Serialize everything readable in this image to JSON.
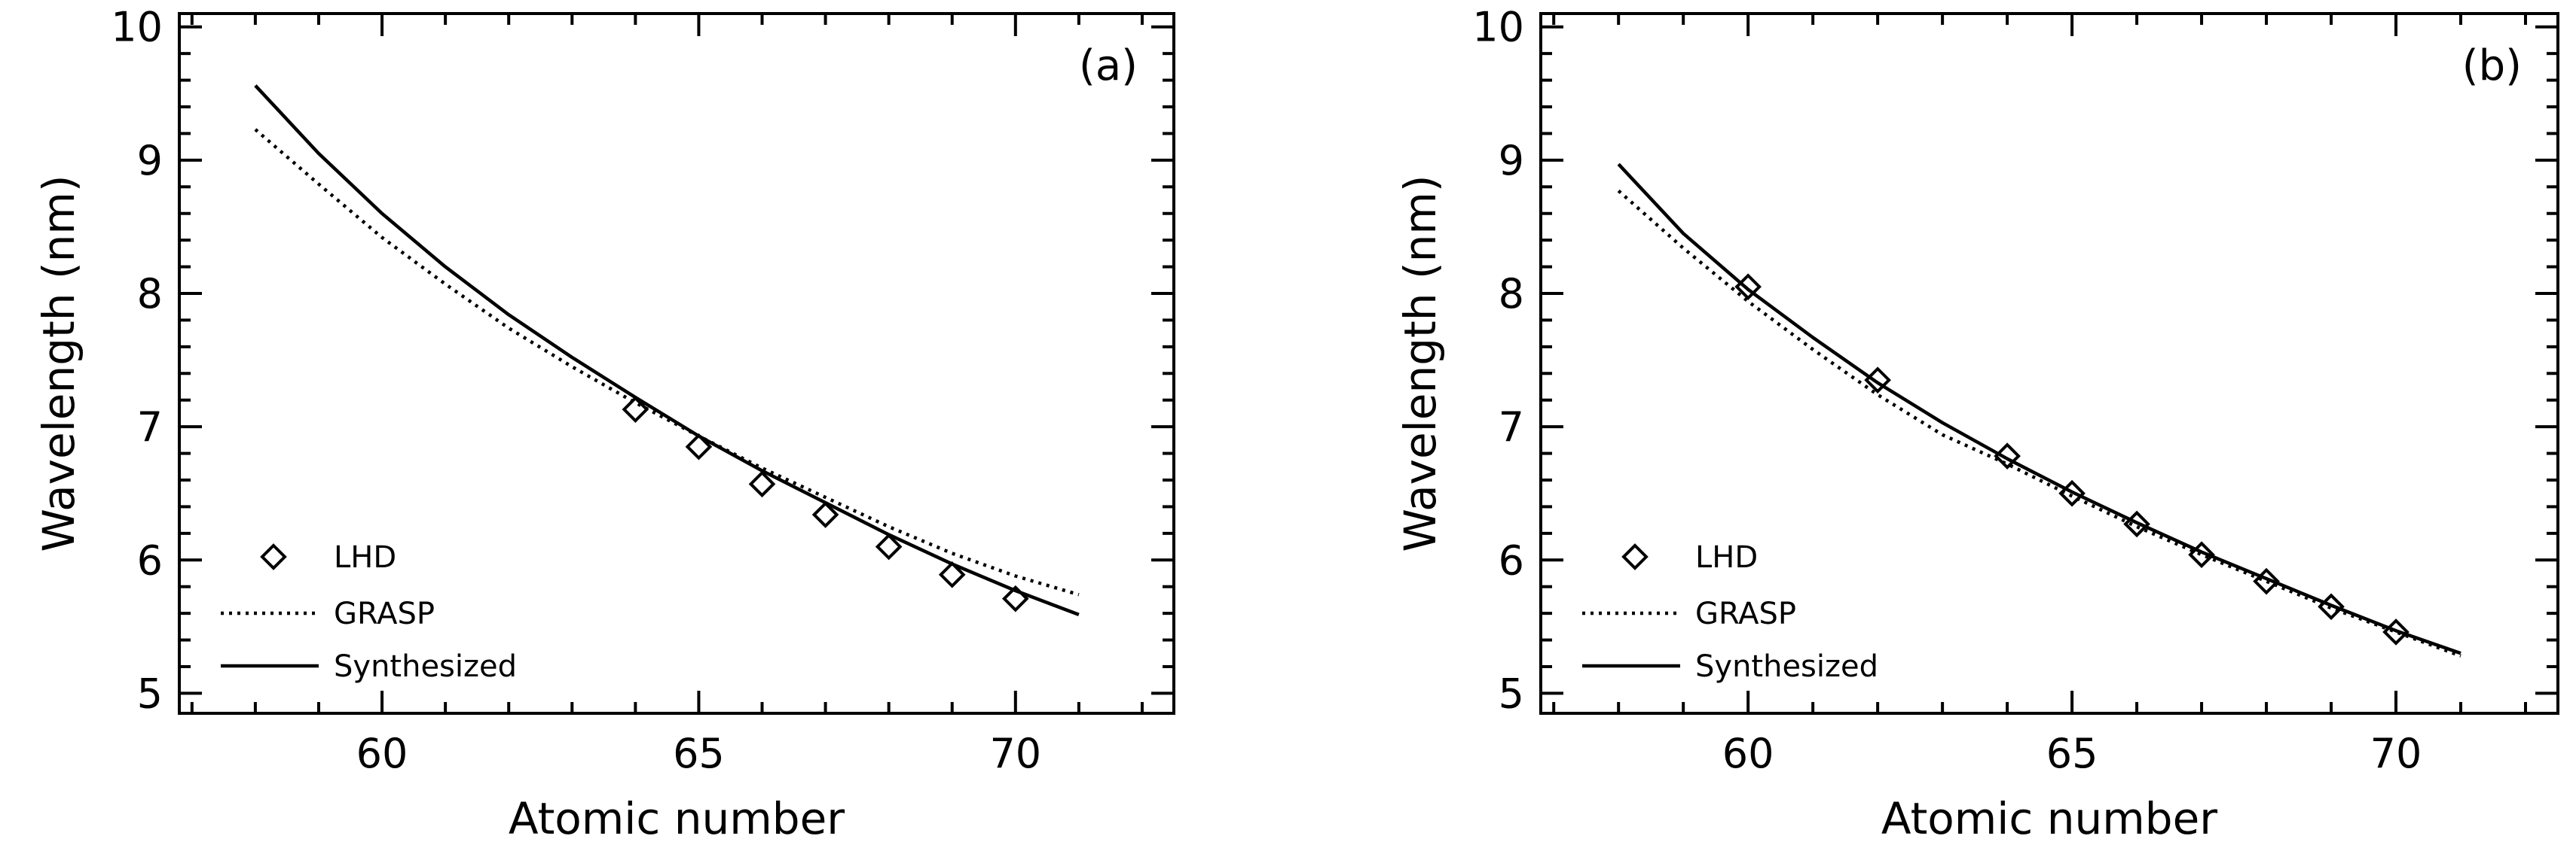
{
  "chart_data": [
    {
      "type": "line",
      "panel_label": "(a)",
      "xlabel": "Atomic number",
      "ylabel": "Wavelength (nm)",
      "xlim": [
        56.8,
        72.5
      ],
      "ylim": [
        4.85,
        10.1
      ],
      "xticks": [
        60,
        65,
        70
      ],
      "xtick_labels": [
        "60",
        "65",
        "70"
      ],
      "yticks": [
        5,
        6,
        7,
        8,
        9,
        10
      ],
      "ytick_labels": [
        "5",
        "6",
        "7",
        "8",
        "9",
        "10"
      ],
      "legend_position": "bottom-left",
      "series": [
        {
          "name": "LHD",
          "style": "diamond-markers",
          "x": [
            64,
            65,
            66,
            67,
            68,
            69,
            70
          ],
          "y": [
            7.13,
            6.85,
            6.57,
            6.34,
            6.1,
            5.89,
            5.71
          ]
        },
        {
          "name": "GRASP",
          "style": "dotted-line",
          "x": [
            58,
            59,
            60,
            61,
            62,
            63,
            64,
            65,
            66,
            67,
            68,
            69,
            70,
            71
          ],
          "y": [
            9.23,
            8.82,
            8.42,
            8.07,
            7.74,
            7.45,
            7.18,
            6.93,
            6.69,
            6.47,
            6.25,
            6.05,
            5.88,
            5.74
          ]
        },
        {
          "name": "Synthesized",
          "style": "solid-line",
          "x": [
            58,
            59,
            60,
            61,
            62,
            63,
            64,
            65,
            66,
            67,
            68,
            69,
            70,
            71
          ],
          "y": [
            9.56,
            9.05,
            8.6,
            8.2,
            7.84,
            7.52,
            7.22,
            6.93,
            6.67,
            6.43,
            6.19,
            5.97,
            5.77,
            5.59
          ]
        }
      ]
    },
    {
      "type": "line",
      "panel_label": "(b)",
      "xlabel": "Atomic number",
      "ylabel": "Wavelength (nm)",
      "xlim": [
        56.8,
        72.5
      ],
      "ylim": [
        4.85,
        10.1
      ],
      "xticks": [
        60,
        65,
        70
      ],
      "xtick_labels": [
        "60",
        "65",
        "70"
      ],
      "yticks": [
        5,
        6,
        7,
        8,
        9,
        10
      ],
      "ytick_labels": [
        "5",
        "6",
        "7",
        "8",
        "9",
        "10"
      ],
      "legend_position": "bottom-left",
      "series": [
        {
          "name": "LHD",
          "style": "diamond-markers",
          "x": [
            60,
            62,
            64,
            65,
            66,
            67,
            68,
            69,
            70
          ],
          "y": [
            8.05,
            7.35,
            6.78,
            6.5,
            6.27,
            6.04,
            5.84,
            5.65,
            5.46
          ]
        },
        {
          "name": "GRASP",
          "style": "dotted-line",
          "x": [
            58,
            59,
            60,
            61,
            62,
            63,
            64,
            65,
            66,
            67,
            68,
            69,
            70,
            71
          ],
          "y": [
            8.77,
            8.34,
            7.94,
            7.58,
            7.24,
            6.94,
            6.72,
            6.48,
            6.25,
            6.04,
            5.84,
            5.64,
            5.46,
            5.28
          ]
        },
        {
          "name": "Synthesized",
          "style": "solid-line",
          "x": [
            58,
            59,
            60,
            61,
            62,
            63,
            64,
            65,
            66,
            67,
            68,
            69,
            70,
            71
          ],
          "y": [
            8.97,
            8.45,
            8.03,
            7.67,
            7.33,
            7.03,
            6.76,
            6.51,
            6.28,
            6.06,
            5.86,
            5.66,
            5.47,
            5.3
          ]
        }
      ]
    }
  ]
}
